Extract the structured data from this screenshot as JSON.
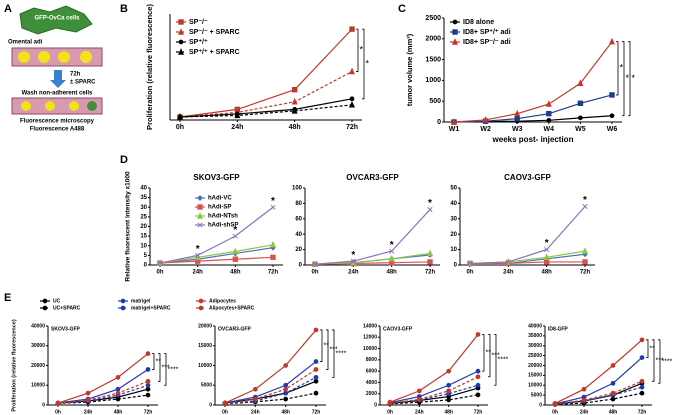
{
  "panel_labels": [
    "A",
    "B",
    "C",
    "D",
    "E"
  ],
  "diagram": {
    "texts": [
      "GFP-OvCa cells",
      "Omental adi",
      "72h",
      "± SPARC",
      "Wash non-adherent cells",
      "Fluorescence microscopy",
      "Fluorescence A488"
    ]
  },
  "chart_data": [
    {
      "type": "line",
      "ylabel": "Proliferation (relative fluorescence)",
      "categories": [
        "0h",
        "24h",
        "48h",
        "72h"
      ],
      "ylim": [
        0,
        35
      ],
      "legend": "upper left",
      "annotations": [
        "*",
        "*"
      ],
      "series": [
        {
          "name": "SP⁻/⁻",
          "color": "#c0392b",
          "line_style": "solid",
          "marker": "square",
          "values": [
            1,
            3.5,
            10,
            30
          ]
        },
        {
          "name": "SP⁻/⁻ + SPARC",
          "color": "#c0392b",
          "line_style": "dashed",
          "marker": "triangle",
          "values": [
            1,
            2.5,
            6,
            16
          ]
        },
        {
          "name": "SP⁺/⁺",
          "color": "#000000",
          "line_style": "solid",
          "marker": "circle",
          "values": [
            1,
            2,
            3.5,
            7
          ]
        },
        {
          "name": "SP⁺/⁺ + SPARC",
          "color": "#000000",
          "line_style": "dashed",
          "marker": "triangle",
          "values": [
            1,
            1.5,
            3,
            5
          ]
        }
      ]
    },
    {
      "type": "line",
      "ylabel": "tumor volume (mm³)",
      "xlabel": "weeks post- injection",
      "categories": [
        "W1",
        "W2",
        "W3",
        "W4",
        "W5",
        "W6"
      ],
      "ylim": [
        0,
        2500
      ],
      "yticks": [
        0,
        500,
        1000,
        1500,
        2000,
        2500
      ],
      "legend": "upper left",
      "annotations": [
        "*",
        "*",
        "*"
      ],
      "series": [
        {
          "name": "ID8 alone",
          "color": "#000000",
          "line_style": "solid",
          "marker": "circle",
          "values": [
            0,
            10,
            20,
            40,
            100,
            150
          ]
        },
        {
          "name": "ID8+ SP⁺/⁺ adi",
          "color": "#1f3b8c",
          "line_style": "solid",
          "marker": "square",
          "values": [
            0,
            20,
            80,
            200,
            450,
            650
          ]
        },
        {
          "name": "ID8+ SP⁻/⁻ adi",
          "color": "#c0392b",
          "line_style": "solid",
          "marker": "triangle",
          "values": [
            0,
            50,
            200,
            430,
            930,
            1930
          ]
        }
      ]
    },
    {
      "type": "line",
      "title": "SKOV3-GFP",
      "ylabel": "Relative fluorescent intensity x1000",
      "categories": [
        "0h",
        "24h",
        "48h",
        "72h"
      ],
      "ylim": [
        0,
        40
      ],
      "yticks": [
        0,
        5,
        10,
        15,
        20,
        25,
        30,
        35,
        40
      ],
      "legend": "upper left",
      "annotations": [
        "*",
        "*",
        "*"
      ],
      "series": [
        {
          "name": "hAdi-VC",
          "color": "#4a6fc1",
          "line_style": "solid",
          "marker": "diamond",
          "values": [
            1,
            3,
            6,
            9
          ]
        },
        {
          "name": "hAdi-SP",
          "color": "#d9534f",
          "line_style": "solid",
          "marker": "square",
          "values": [
            1,
            2,
            3,
            4
          ]
        },
        {
          "name": "hAdi-NTsh",
          "color": "#8dc63f",
          "line_style": "solid",
          "marker": "triangle",
          "values": [
            1,
            4,
            7,
            10.5
          ]
        },
        {
          "name": "hAdi-shSP",
          "color": "#8e6fc1",
          "line_style": "solid",
          "marker": "x",
          "values": [
            1,
            5,
            15,
            30
          ]
        }
      ]
    },
    {
      "type": "line",
      "title": "OVCAR3-GFP",
      "categories": [
        "0h",
        "24h",
        "48h",
        "72h"
      ],
      "ylim": [
        0,
        100
      ],
      "yticks": [
        0,
        20,
        40,
        60,
        80,
        100
      ],
      "annotations": [
        "*",
        "*",
        "*"
      ],
      "series": [
        {
          "color": "#4a6fc1",
          "line_style": "solid",
          "marker": "diamond",
          "values": [
            1,
            3,
            8,
            13
          ]
        },
        {
          "color": "#d9534f",
          "line_style": "solid",
          "marker": "square",
          "values": [
            1,
            2,
            3,
            4
          ]
        },
        {
          "color": "#8dc63f",
          "line_style": "solid",
          "marker": "triangle",
          "values": [
            1,
            3,
            8,
            15
          ]
        },
        {
          "color": "#8e6fc1",
          "line_style": "solid",
          "marker": "x",
          "values": [
            1,
            5,
            18,
            72
          ]
        }
      ]
    },
    {
      "type": "line",
      "title": "CAOV3-GFP",
      "categories": [
        "0h",
        "24h",
        "48h",
        "72h"
      ],
      "ylim": [
        0,
        50
      ],
      "yticks": [
        0,
        10,
        20,
        30,
        40,
        50
      ],
      "annotations": [
        "*",
        "*"
      ],
      "series": [
        {
          "color": "#4a6fc1",
          "line_style": "solid",
          "marker": "diamond",
          "values": [
            1,
            1,
            4,
            7
          ]
        },
        {
          "color": "#d9534f",
          "line_style": "solid",
          "marker": "square",
          "values": [
            1,
            1,
            2,
            2
          ]
        },
        {
          "color": "#8dc63f",
          "line_style": "solid",
          "marker": "triangle",
          "values": [
            1,
            2,
            5,
            9
          ]
        },
        {
          "color": "#8e6fc1",
          "line_style": "solid",
          "marker": "x",
          "values": [
            1,
            2,
            10,
            38
          ]
        }
      ]
    },
    {
      "type": "line",
      "title": "SKOV3-GFP",
      "ylabel": "Proliferation (relative fluorescence)",
      "categories": [
        "0h",
        "24h",
        "48h",
        "72h"
      ],
      "ylim": [
        0,
        40000
      ],
      "yticks": [
        0,
        10000,
        20000,
        30000,
        40000
      ],
      "legend": "top",
      "annotations": [
        "**",
        "***",
        "****"
      ],
      "series": [
        {
          "name": "UC",
          "color": "#000000",
          "line_style": "solid",
          "marker": "circle",
          "values": [
            1000,
            2000,
            4000,
            8000
          ]
        },
        {
          "name": "UC+SPARC",
          "color": "#000000",
          "line_style": "dashed",
          "marker": "circle",
          "values": [
            800,
            1500,
            3000,
            5000
          ]
        },
        {
          "name": "matrigel",
          "color": "#2338b0",
          "line_style": "solid",
          "marker": "circle",
          "values": [
            1000,
            3000,
            8000,
            18000
          ]
        },
        {
          "name": "matrigel+SPARC",
          "color": "#2338b0",
          "line_style": "dashed",
          "marker": "circle",
          "values": [
            800,
            2000,
            5000,
            10000
          ]
        },
        {
          "name": "Adipocytes",
          "color": "#c0392b",
          "line_style": "solid",
          "marker": "circle",
          "values": [
            1000,
            6000,
            14000,
            26000
          ]
        },
        {
          "name": "Alipocytes+SPARC",
          "color": "#c0392b",
          "line_style": "dashed",
          "marker": "circle",
          "values": [
            800,
            2500,
            6000,
            12000
          ]
        }
      ]
    },
    {
      "type": "line",
      "title": "OVCAR3-GFP",
      "categories": [
        "0h",
        "24h",
        "48h",
        "72h"
      ],
      "ylim": [
        0,
        20000
      ],
      "yticks": [
        0,
        5000,
        10000,
        15000,
        20000
      ],
      "annotations": [
        "**",
        "***",
        "****"
      ],
      "series": [
        {
          "color": "#000000",
          "line_style": "solid",
          "marker": "circle",
          "values": [
            500,
            1500,
            3000,
            6000
          ]
        },
        {
          "color": "#000000",
          "line_style": "dashed",
          "marker": "circle",
          "values": [
            300,
            800,
            1500,
            3000
          ]
        },
        {
          "color": "#2338b0",
          "line_style": "solid",
          "marker": "circle",
          "values": [
            500,
            2000,
            5000,
            11000
          ]
        },
        {
          "color": "#2338b0",
          "line_style": "dashed",
          "marker": "circle",
          "values": [
            300,
            1000,
            3000,
            7000
          ]
        },
        {
          "color": "#c0392b",
          "line_style": "solid",
          "marker": "circle",
          "values": [
            500,
            4000,
            10000,
            19000
          ]
        },
        {
          "color": "#c0392b",
          "line_style": "dashed",
          "marker": "circle",
          "values": [
            300,
            1500,
            4000,
            9000
          ]
        }
      ]
    },
    {
      "type": "line",
      "title": "CAOV3-GFP",
      "categories": [
        "0h",
        "24h",
        "48h",
        "72h"
      ],
      "ylim": [
        0,
        14000
      ],
      "yticks": [
        0,
        2000,
        4000,
        6000,
        8000,
        10000,
        12000,
        14000
      ],
      "annotations": [
        "**",
        "***",
        "****"
      ],
      "series": [
        {
          "color": "#000000",
          "line_style": "solid",
          "marker": "circle",
          "values": [
            300,
            800,
            1500,
            3000
          ]
        },
        {
          "color": "#000000",
          "line_style": "dashed",
          "marker": "circle",
          "values": [
            200,
            500,
            900,
            1800
          ]
        },
        {
          "color": "#2338b0",
          "line_style": "solid",
          "marker": "circle",
          "values": [
            400,
            1500,
            3500,
            6000
          ]
        },
        {
          "color": "#2338b0",
          "line_style": "dashed",
          "marker": "circle",
          "values": [
            300,
            900,
            2000,
            3500
          ]
        },
        {
          "color": "#c0392b",
          "line_style": "solid",
          "marker": "circle",
          "values": [
            500,
            2500,
            6000,
            12500
          ]
        },
        {
          "color": "#c0392b",
          "line_style": "dashed",
          "marker": "circle",
          "values": [
            300,
            1000,
            2500,
            5000
          ]
        }
      ]
    },
    {
      "type": "line",
      "title": "ID8-GFP",
      "categories": [
        "0h",
        "24h",
        "48h",
        "72h"
      ],
      "ylim": [
        0,
        40000
      ],
      "yticks": [
        0,
        5000,
        10000,
        15000,
        20000,
        25000,
        30000,
        35000,
        40000
      ],
      "annotations": [
        "**",
        "***",
        "****"
      ],
      "series": [
        {
          "color": "#000000",
          "line_style": "solid",
          "marker": "circle",
          "values": [
            500,
            2000,
            5000,
            11000
          ]
        },
        {
          "color": "#000000",
          "line_style": "dashed",
          "marker": "circle",
          "values": [
            300,
            1000,
            3000,
            6000
          ]
        },
        {
          "color": "#2338b0",
          "line_style": "solid",
          "marker": "circle",
          "values": [
            500,
            4000,
            11000,
            24000
          ]
        },
        {
          "color": "#2338b0",
          "line_style": "dashed",
          "marker": "circle",
          "values": [
            300,
            2000,
            5000,
            9000
          ]
        },
        {
          "color": "#c0392b",
          "line_style": "solid",
          "marker": "circle",
          "values": [
            800,
            8000,
            20000,
            33000
          ]
        },
        {
          "color": "#c0392b",
          "line_style": "dashed",
          "marker": "circle",
          "values": [
            300,
            2500,
            6000,
            12000
          ]
        }
      ]
    }
  ]
}
